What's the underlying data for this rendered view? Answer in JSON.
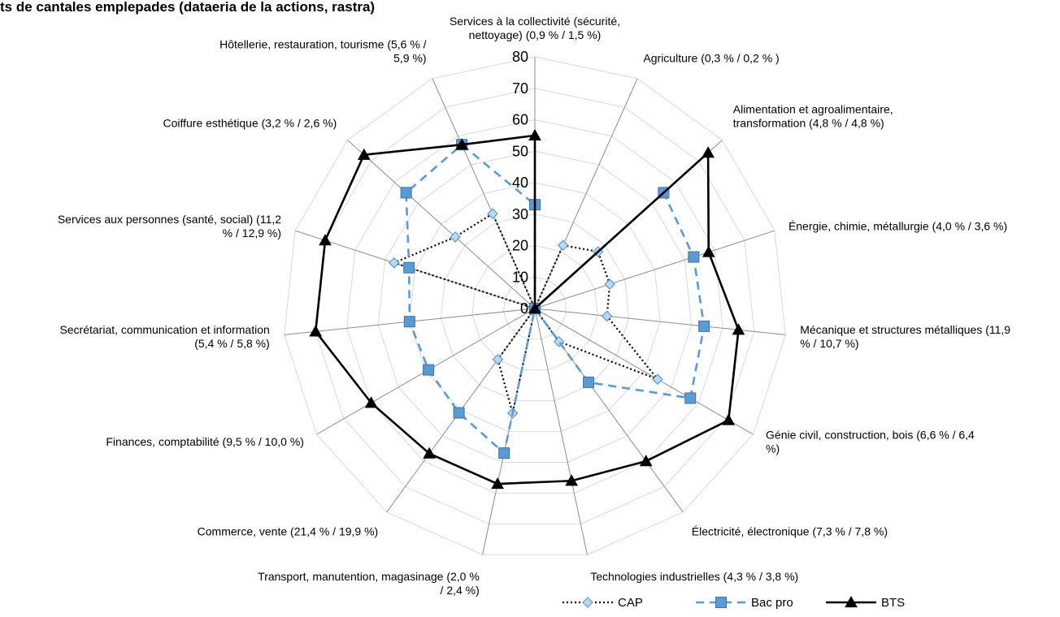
{
  "chart_data": {
    "type": "radar",
    "title": "ts de cantales emplepades (dataeria de la actions, rastra)",
    "categories": [
      [
        "Services à la collectivité (sécurité,",
        "nettoyage) (0,9 % / 1,5 %)"
      ],
      [
        "Agriculture (0,3 % / 0,2 % )"
      ],
      [
        "Alimentation et agroalimentaire,",
        "transformation (4,8 % / 4,8 %)"
      ],
      [
        "Énergie, chimie, métallurgie (4,0 % / 3,6 %)"
      ],
      [
        "Mécanique et structures métalliques (11,9",
        "% / 10,7 %)"
      ],
      [
        "Génie civil, construction, bois (6,6 % / 6,4",
        "%)"
      ],
      [
        "Électricité, électronique (7,3 % / 7,8 %)"
      ],
      [
        "Technologies industrielles (4,3 % / 3,8 %)"
      ],
      [
        "Transport, manutention, magasinage (2,0 %",
        "/ 2,4 %)"
      ],
      [
        "Commerce, vente (21,4 % / 19,9 %)"
      ],
      [
        "Finances, comptabilité (9,5 % / 10,0 %)"
      ],
      [
        "Secrétariat, communication et information",
        "(5,4 % / 5,8 %)"
      ],
      [
        "Services aux personnes (santé, social) (11,2",
        "% / 12,9 %)"
      ],
      [
        "Coiffure esthétique (3,2 % / 2,6 %)"
      ],
      [
        "Hôtellerie, restauration, tourisme (5,6 % /",
        "5,9 %)"
      ]
    ],
    "radial_ticks": [
      "0",
      "10",
      "20",
      "30",
      "40",
      "50",
      "60",
      "70",
      "80"
    ],
    "rmax": 80,
    "series": [
      {
        "name": "CAP",
        "color": "#000000",
        "marker": "diamond",
        "values": [
          0,
          22,
          27,
          25,
          23,
          45,
          13,
          0,
          34,
          20,
          0,
          0,
          47,
          34,
          33
        ]
      },
      {
        "name": "Bac pro",
        "color": "#5b9bd5",
        "marker": "square",
        "values": [
          33,
          0,
          55,
          53,
          54,
          57,
          29,
          0,
          47,
          41,
          39,
          40,
          42,
          55,
          57
        ]
      },
      {
        "name": "BTS",
        "color": "#000000",
        "marker": "triangle",
        "values": [
          55,
          0,
          74,
          58,
          65,
          71,
          60,
          56,
          57,
          57,
          60,
          70,
          70,
          73,
          57
        ]
      }
    ],
    "grid": true,
    "legend_position": "bottom-right"
  }
}
